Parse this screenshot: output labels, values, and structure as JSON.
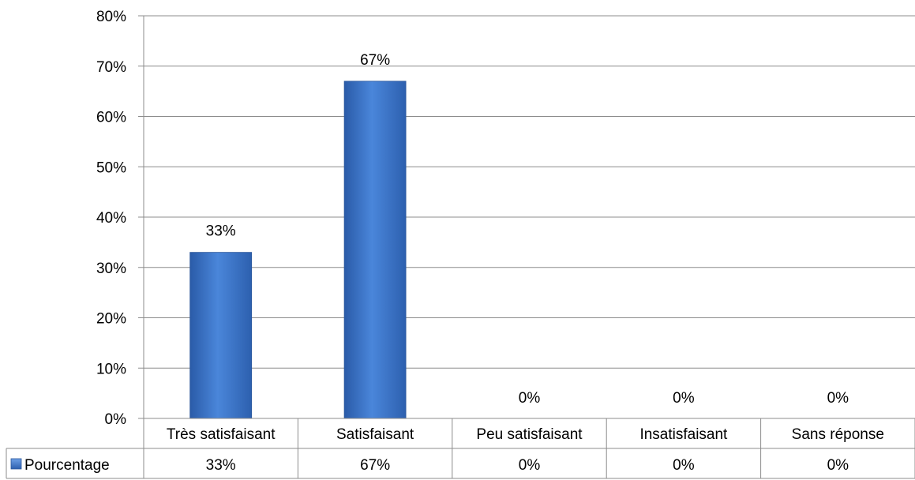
{
  "chart_data": {
    "type": "bar",
    "title": "",
    "xlabel": "",
    "ylabel": "",
    "categories": [
      "Très satisfaisant",
      "Satisfaisant",
      "Peu satisfaisant",
      "Insatisfaisant",
      "Sans réponse"
    ],
    "series": [
      {
        "name": "Pourcentage",
        "values": [
          33,
          67,
          0,
          0,
          0
        ],
        "color": "#3E78CC"
      }
    ],
    "data_labels": [
      "33%",
      "67%",
      "0%",
      "0%",
      "0%"
    ],
    "table_values": [
      "33%",
      "67%",
      "0%",
      "0%",
      "0%"
    ],
    "y_ticks": [
      "0%",
      "10%",
      "20%",
      "30%",
      "40%",
      "50%",
      "60%",
      "70%",
      "80%"
    ],
    "ylim": [
      0,
      80
    ],
    "y_tick_step": 10,
    "grid": true,
    "legend_placement": "data-table-left"
  }
}
